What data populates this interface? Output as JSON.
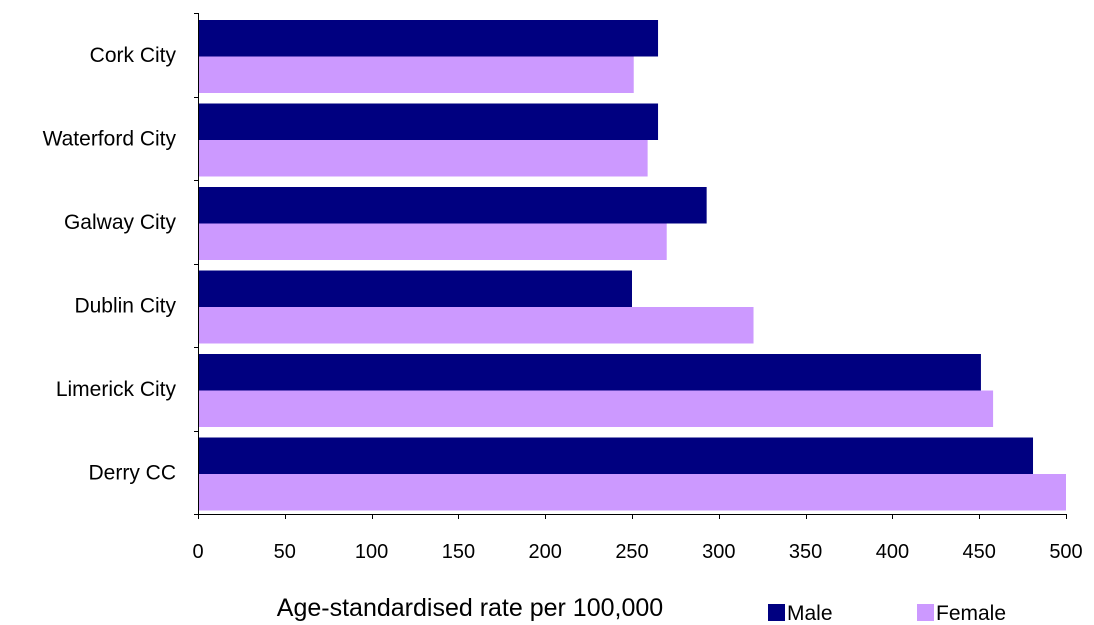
{
  "chart_data": {
    "type": "bar",
    "orientation": "horizontal",
    "categories": [
      "Cork City",
      "Waterford City",
      "Galway City",
      "Dublin City",
      "Limerick City",
      "Derry CC"
    ],
    "series": [
      {
        "name": "Male",
        "color": "#000080",
        "values": [
          265,
          265,
          293,
          250,
          451,
          481
        ]
      },
      {
        "name": "Female",
        "color": "#CC99FF",
        "values": [
          251,
          259,
          270,
          320,
          458,
          500
        ]
      }
    ],
    "xlabel": "Age-standardised rate per 100,000",
    "ylabel": "",
    "xlim": [
      0,
      500
    ],
    "xticks": [
      "0",
      "50",
      "100",
      "150",
      "200",
      "250",
      "300",
      "350",
      "400",
      "450",
      "500"
    ],
    "grid": false,
    "legend_position": "bottom-right"
  }
}
